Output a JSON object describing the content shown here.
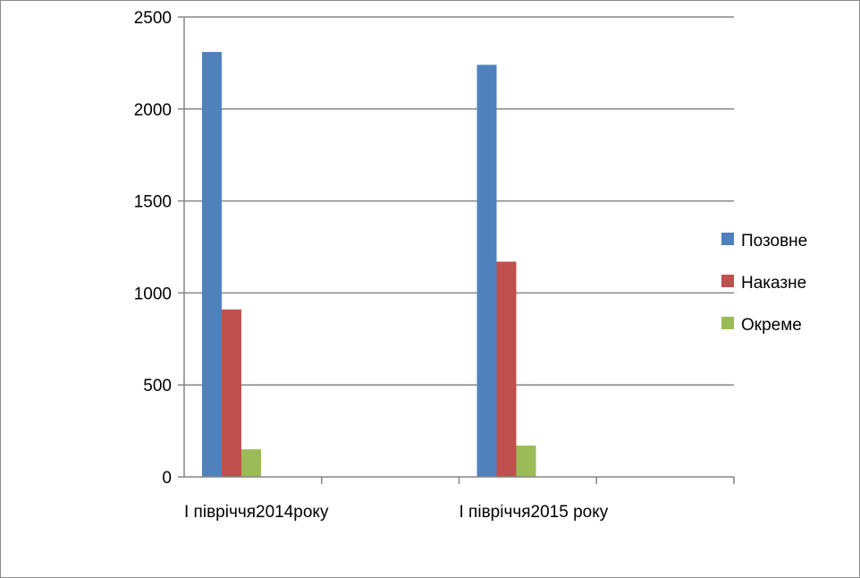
{
  "chart_data": {
    "type": "bar",
    "categories": [
      "І півріччя2014року",
      "І півріччя2015 року"
    ],
    "series": [
      {
        "name": "Позовне",
        "color": "#4f81bd",
        "values": [
          2310,
          2240
        ]
      },
      {
        "name": "Наказне",
        "color": "#c0504d",
        "values": [
          910,
          1170
        ]
      },
      {
        "name": "Окреме",
        "color": "#9bbb59",
        "values": [
          150,
          170
        ]
      }
    ],
    "ylim": [
      0,
      2500
    ],
    "yticks": [
      "0",
      "500",
      "1000",
      "1500",
      "2000",
      "2500"
    ],
    "grid": true,
    "legend": "right"
  }
}
